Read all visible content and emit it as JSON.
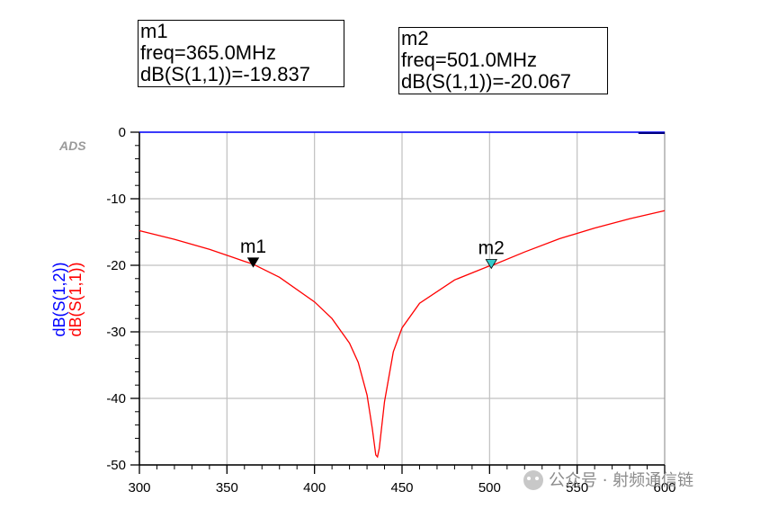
{
  "markers": [
    {
      "name": "m1",
      "freq_text": "freq=365.0MHz",
      "value_text": "dB(S(1,1))=-19.837",
      "freq": 365.0,
      "value": -19.837,
      "color": "#000000"
    },
    {
      "name": "m2",
      "freq_text": "freq=501.0MHz",
      "value_text": "dB(S(1,1))=-20.067",
      "freq": 501.0,
      "value": -20.067,
      "color": "#33cccc"
    }
  ],
  "watermark": "公众号 · 射频通信链",
  "chart_data": {
    "type": "line",
    "tag": "ADS",
    "xlim": [
      300,
      600
    ],
    "ylim": [
      -50,
      0
    ],
    "xticks": [
      300,
      350,
      400,
      450,
      500,
      550,
      600
    ],
    "yticks": [
      0,
      -10,
      -20,
      -30,
      -40,
      -50
    ],
    "ylabels": [
      {
        "text": "dB(S(1,2))",
        "color": "#0000ff"
      },
      {
        "text": "dB(S(1,1))",
        "color": "#ff0000"
      }
    ],
    "grid": true,
    "series": [
      {
        "name": "dB(S(1,2))",
        "color": "#0000ff",
        "x": [
          300,
          600
        ],
        "y": [
          0,
          0
        ]
      },
      {
        "name": "dB(S(1,1))",
        "color": "#ff0000",
        "x": [
          300,
          320,
          340,
          360,
          365,
          380,
          400,
          410,
          420,
          425,
          430,
          433,
          435,
          436,
          437,
          440,
          445,
          450,
          460,
          480,
          500,
          501,
          520,
          540,
          560,
          580,
          600
        ],
        "y": [
          -14.8,
          -16.1,
          -17.6,
          -19.4,
          -19.837,
          -21.8,
          -25.5,
          -28.0,
          -31.7,
          -34.6,
          -39.5,
          -44.5,
          -48.5,
          -48.8,
          -47.5,
          -40.5,
          -33.0,
          -29.4,
          -25.7,
          -22.2,
          -20.1,
          -20.067,
          -18.0,
          -16.0,
          -14.4,
          -13.0,
          -11.8
        ]
      }
    ]
  }
}
